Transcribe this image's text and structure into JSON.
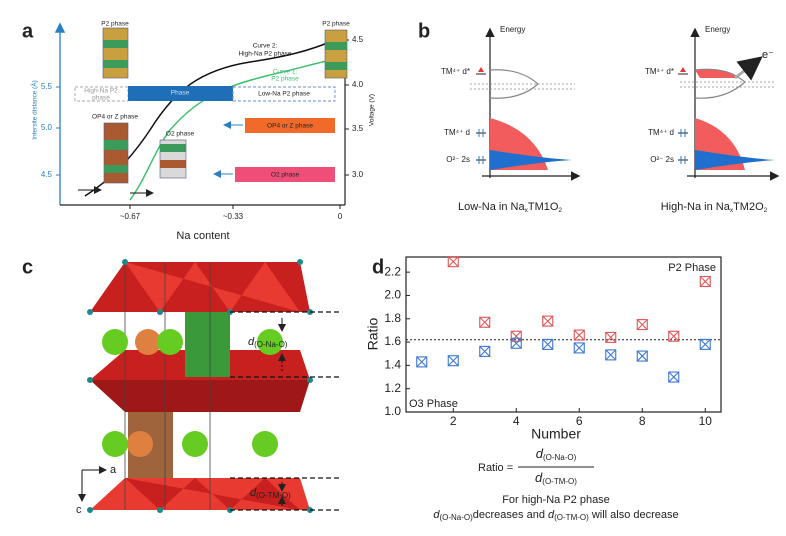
{
  "panels": {
    "a": {
      "label": "a",
      "xlabel": "Na content",
      "ylabel_left": "Intersite distance (Å)",
      "ylabel_right": "Voltage (V)",
      "left_ticks": [
        "5.5",
        "5.0",
        "4.5"
      ],
      "right_ticks": [
        "4.5",
        "4.0",
        "3.5",
        "3.0"
      ],
      "x_ticks": [
        "~0.67",
        "~0.33",
        "0"
      ],
      "annotations": [
        "P2 phase",
        "P2 phase",
        "Curve 2:",
        "High-Na P2 phase",
        "Curve 1:",
        "P2 phase",
        "High-Na P2",
        "phase",
        "Phase",
        "Low-Na P2 phase",
        "OP4 or Z phase",
        "OP4 or Z phase",
        "O2 phase",
        "O2 phase"
      ]
    },
    "b": {
      "label": "b",
      "energy_labels": [
        "Energy",
        "Energy"
      ],
      "levels": [
        "TM⁴⁺ d*",
        "TM⁴⁺ d",
        "O²⁻ 2s"
      ],
      "electron": "e⁻",
      "captions": [
        [
          "Low-Na in Na",
          "x",
          "TM1O",
          "2"
        ],
        [
          "High-Na in Na",
          "x",
          "TM2O",
          "2"
        ]
      ]
    },
    "c": {
      "label": "c",
      "axes": [
        "a",
        "c"
      ],
      "distances": [
        [
          "d",
          "(O-Na-O)"
        ],
        [
          "d",
          "(O-TM-O)"
        ]
      ]
    }
  },
  "chart_data": {
    "type": "scatter",
    "panel_label": "d",
    "xlabel": "Number",
    "ylabel": "Ratio",
    "x": [
      1,
      2,
      3,
      4,
      5,
      6,
      7,
      8,
      9,
      10
    ],
    "series": [
      {
        "color": "#e05555",
        "values": [
          null,
          2.29,
          1.77,
          1.65,
          1.78,
          1.66,
          1.64,
          1.75,
          1.65,
          2.12
        ]
      },
      {
        "color": "#3b78d0",
        "values": [
          1.43,
          1.44,
          1.52,
          1.59,
          1.58,
          1.55,
          1.49,
          1.48,
          1.3,
          1.58
        ]
      }
    ],
    "xlim": [
      0.5,
      10.5
    ],
    "ylim": [
      1.0,
      2.33
    ],
    "xticks": [
      2,
      4,
      6,
      8,
      10
    ],
    "yticks": [
      {
        "value": 1,
        "label": "1.0"
      },
      1.2,
      1.4,
      1.6,
      1.8,
      {
        "value": 2,
        "label": "2.0"
      },
      2.2
    ],
    "reference_line": 1.62,
    "annotations": [
      "P2 Phase",
      "O3 Phase"
    ]
  },
  "formula": {
    "lhs": "Ratio =",
    "numerator": [
      "d",
      "(O-Na-O)"
    ],
    "denominator": [
      "d",
      "(O-TM-O)"
    ],
    "note": [
      "For high-Na P2 phase",
      [
        "d",
        "(O-Na-O)",
        "decreases and ",
        "d",
        "(O-TM-O)",
        " will also decrease"
      ]
    ]
  }
}
